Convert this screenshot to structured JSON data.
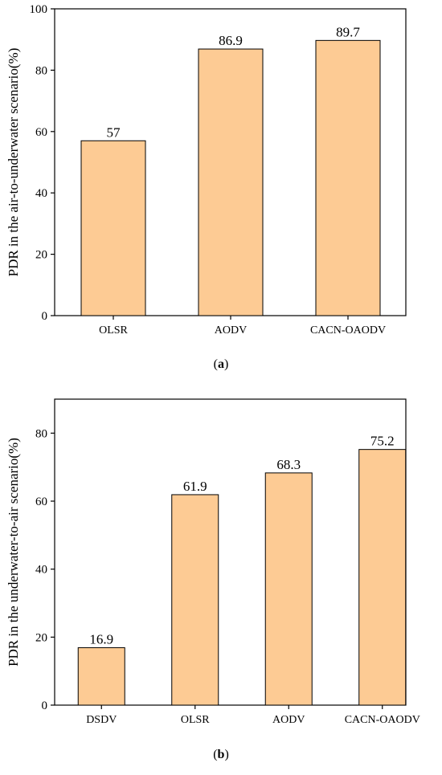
{
  "chart_data": [
    {
      "type": "bar",
      "panel_label": "(a)",
      "categories": [
        "OLSR",
        "AODV",
        "CACN-OAODV"
      ],
      "values": [
        57,
        86.9,
        89.7
      ],
      "data_labels": [
        "57",
        "86.9",
        "89.7"
      ],
      "ylabel": "PDR in the air-to-underwater scenario(%)",
      "xlabel": "",
      "ylim": [
        0,
        100
      ],
      "yticks": [
        0,
        20,
        40,
        60,
        80,
        100
      ],
      "grid": false,
      "bar_color": "#fdcb94",
      "bar_edge_color": "#000000"
    },
    {
      "type": "bar",
      "panel_label": "(b)",
      "categories": [
        "DSDV",
        "OLSR",
        "AODV",
        "CACN-OAODV"
      ],
      "values": [
        16.9,
        61.9,
        68.3,
        75.2
      ],
      "data_labels": [
        "16.9",
        "61.9",
        "68.3",
        "75.2"
      ],
      "ylabel": "PDR in the underwater-to-air scenario(%)",
      "xlabel": "",
      "ylim": [
        0,
        90
      ],
      "yticks": [
        0,
        20,
        40,
        60,
        80
      ],
      "grid": false,
      "bar_color": "#fdcb94",
      "bar_edge_color": "#000000"
    }
  ]
}
